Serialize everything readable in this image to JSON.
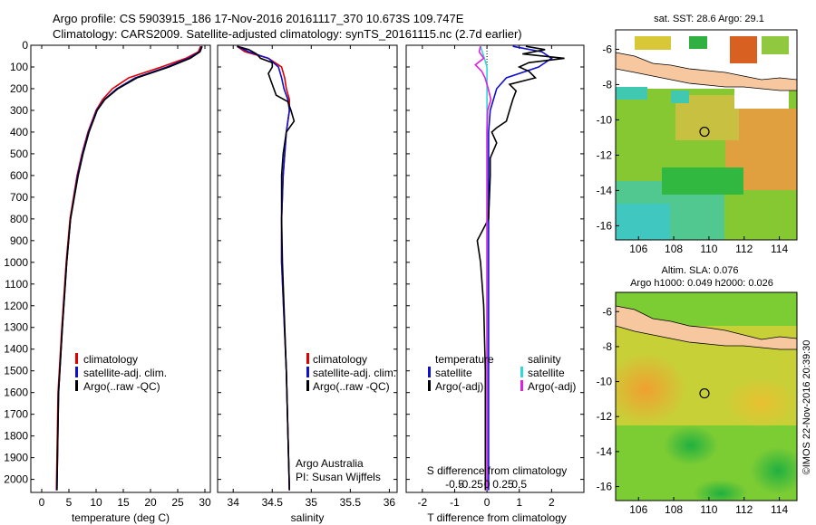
{
  "header": {
    "line1": "Argo profile: CS 5903915_186 17-Nov-2016 20161117_370 10.673S 109.747E",
    "line2": "Climatology: CARS2009. Satellite-adjusted climatology: synTS_20161115.nc (2.7d earlier)"
  },
  "colors": {
    "climatology": "#e00000",
    "satellite": "#1010d0",
    "argo": "#000000",
    "sat_salinity": "#30d8d8",
    "argo_salinity_diff": "#e020e0",
    "land": "#f7c8a0"
  },
  "depth_axis": {
    "ticks": [
      0,
      100,
      200,
      300,
      400,
      500,
      600,
      700,
      800,
      900,
      1000,
      1100,
      1200,
      1300,
      1400,
      1500,
      1600,
      1700,
      1800,
      1900,
      2000
    ]
  },
  "chart_data": [
    {
      "id": "temperature",
      "type": "line",
      "xlabel": "temperature (deg C)",
      "xlim": [
        -2,
        31
      ],
      "ylim": [
        2060,
        0
      ],
      "xticks": [
        "0",
        "5",
        "10",
        "15",
        "20",
        "25",
        "30"
      ],
      "legend": [
        "climatology",
        "satellite-adj. clim.",
        "Argo(..raw -QC)"
      ],
      "series": [
        {
          "name": "climatology",
          "depth": [
            5,
            30,
            60,
            100,
            150,
            200,
            250,
            300,
            400,
            500,
            600,
            800,
            1000,
            1300,
            1600,
            2050
          ],
          "values": [
            29.2,
            28.8,
            26.5,
            22,
            16,
            13,
            11.2,
            10,
            8.5,
            7.4,
            6.5,
            5.2,
            4.5,
            3.7,
            3.0,
            2.7
          ]
        },
        {
          "name": "satellite-adj. clim.",
          "depth": [
            5,
            30,
            60,
            100,
            150,
            200,
            250,
            300,
            400,
            500,
            600,
            800,
            1000,
            1300,
            1600,
            2050
          ],
          "values": [
            29.4,
            29.0,
            27,
            23,
            17.2,
            13.8,
            11.5,
            10.1,
            8.6,
            7.5,
            6.6,
            5.3,
            4.6,
            3.8,
            3.1,
            2.8
          ]
        },
        {
          "name": "Argo(..raw -QC)",
          "depth": [
            5,
            30,
            60,
            100,
            150,
            200,
            250,
            300,
            400,
            500,
            600,
            800,
            1000,
            1300,
            1600,
            2050
          ],
          "values": [
            29.5,
            29.1,
            27.3,
            23.4,
            17.5,
            14.0,
            11.6,
            10.2,
            8.7,
            7.6,
            6.7,
            5.3,
            4.6,
            3.8,
            3.1,
            2.8
          ]
        }
      ]
    },
    {
      "id": "salinity",
      "type": "line",
      "xlabel": "salinity",
      "xlim": [
        33.8,
        36.1
      ],
      "ylim": [
        2060,
        0
      ],
      "xticks": [
        "34",
        "34.5",
        "35",
        "35.5",
        "36"
      ],
      "legend": [
        "climatology",
        "satellite-adj. clim.",
        "Argo(..raw -QC)"
      ],
      "annotation": [
        "Argo Australia",
        "PI: Susan Wijffels"
      ],
      "series": [
        {
          "name": "climatology",
          "depth": [
            5,
            30,
            60,
            100,
            150,
            200,
            250,
            300,
            400,
            600,
            800,
            1000,
            1500,
            2050
          ],
          "values": [
            34.05,
            34.15,
            34.45,
            34.62,
            34.66,
            34.68,
            34.72,
            34.72,
            34.68,
            34.64,
            34.62,
            34.62,
            34.68,
            34.72
          ]
        },
        {
          "name": "satellite-adj. clim.",
          "depth": [
            5,
            30,
            60,
            100,
            150,
            200,
            250,
            300,
            400,
            600,
            800,
            1000,
            1500,
            2050
          ],
          "values": [
            34.05,
            34.2,
            34.45,
            34.58,
            34.62,
            34.65,
            34.7,
            34.72,
            34.68,
            34.64,
            34.62,
            34.62,
            34.68,
            34.72
          ]
        },
        {
          "name": "Argo(..raw -QC)",
          "depth": [
            5,
            20,
            40,
            60,
            80,
            100,
            130,
            160,
            200,
            230,
            260,
            300,
            350,
            400,
            500,
            600,
            800,
            1000,
            1500,
            2050
          ],
          "values": [
            34.05,
            34.2,
            34.3,
            34.35,
            34.5,
            34.5,
            34.45,
            34.48,
            34.52,
            34.55,
            34.7,
            34.74,
            34.78,
            34.68,
            34.64,
            34.62,
            34.62,
            34.63,
            34.68,
            34.72
          ]
        }
      ]
    },
    {
      "id": "difference",
      "type": "line",
      "xlabel": "T difference from climatology",
      "toplabel": "S difference from climatology",
      "xlim": [
        -2.5,
        3
      ],
      "ylim": [
        2060,
        0
      ],
      "xticks": [
        "-2",
        "-1",
        "0",
        "1",
        "2"
      ],
      "sticks": [
        "-0.5",
        "-0.25",
        "0",
        "0.25",
        "0.5"
      ],
      "legend_temperature": [
        "temperature",
        "satellite",
        "Argo(-adj)"
      ],
      "legend_salinity": [
        "salinity",
        "satellite",
        "Argo(-adj)"
      ],
      "series": [
        {
          "name": "satellite T",
          "depth": [
            5,
            30,
            60,
            100,
            150,
            200,
            300,
            400,
            600,
            1000,
            1500,
            2050
          ],
          "values": [
            0.8,
            1.7,
            2.0,
            1.6,
            0.6,
            0.3,
            0.1,
            0.05,
            0.05,
            0.05,
            0.05,
            0.05
          ]
        },
        {
          "name": "Argo T",
          "depth": [
            5,
            20,
            40,
            60,
            80,
            100,
            120,
            150,
            180,
            210,
            250,
            300,
            350,
            380,
            400,
            450,
            520,
            600,
            800,
            900,
            1000,
            1200,
            1500,
            1800,
            2050
          ],
          "values": [
            1.2,
            1.8,
            1.1,
            2.4,
            1.3,
            1.0,
            1.3,
            1.5,
            0.7,
            0.9,
            0.8,
            0.7,
            0.6,
            0.3,
            0.15,
            0.3,
            0.1,
            0.1,
            0.05,
            -0.3,
            -0.2,
            -0.1,
            -0.05,
            -0.05,
            -0.05
          ]
        },
        {
          "name": "satellite S",
          "depth": [
            5,
            50,
            100,
            200,
            300,
            400,
            600,
            1000,
            1500,
            2050
          ],
          "values": [
            -0.1,
            -0.05,
            0.0,
            0.0,
            0.0,
            0.0,
            0.0,
            0.0,
            0.0,
            0.0
          ]
        },
        {
          "name": "Argo S",
          "depth": [
            5,
            30,
            60,
            90,
            120,
            150,
            200,
            250,
            300,
            400,
            500,
            700,
            1000,
            1500,
            2050
          ],
          "values": [
            -0.1,
            -0.12,
            -0.05,
            -0.18,
            -0.08,
            -0.03,
            0.02,
            0.06,
            0.01,
            0.0,
            0.0,
            0.0,
            0.0,
            0.0,
            0.0
          ]
        }
      ]
    }
  ],
  "maps": [
    {
      "id": "sst",
      "title": "sat. SST: 28.6 Argo: 29.1",
      "xticks": [
        "106",
        "108",
        "110",
        "112",
        "114"
      ],
      "yticks": [
        "-6",
        "-8",
        "-10",
        "-12",
        "-14",
        "-16"
      ],
      "lon_range": [
        104.7,
        115
      ],
      "lat_range": [
        -16.8,
        -4.9
      ],
      "marker": {
        "lon": 109.747,
        "lat": -10.673
      }
    },
    {
      "id": "sla",
      "title_line1": "Altim. SLA: 0.076",
      "title_line2": "Argo h1000: 0.049 h2000: 0.026",
      "xticks": [
        "106",
        "108",
        "110",
        "112",
        "114"
      ],
      "yticks": [
        "-6",
        "-8",
        "-10",
        "-12",
        "-14",
        "-16"
      ],
      "lon_range": [
        104.7,
        115
      ],
      "lat_range": [
        -16.8,
        -4.9
      ],
      "marker": {
        "lon": 109.747,
        "lat": -10.673
      }
    }
  ],
  "footer": "©IMOS 22-Nov-2016 20:39:30"
}
